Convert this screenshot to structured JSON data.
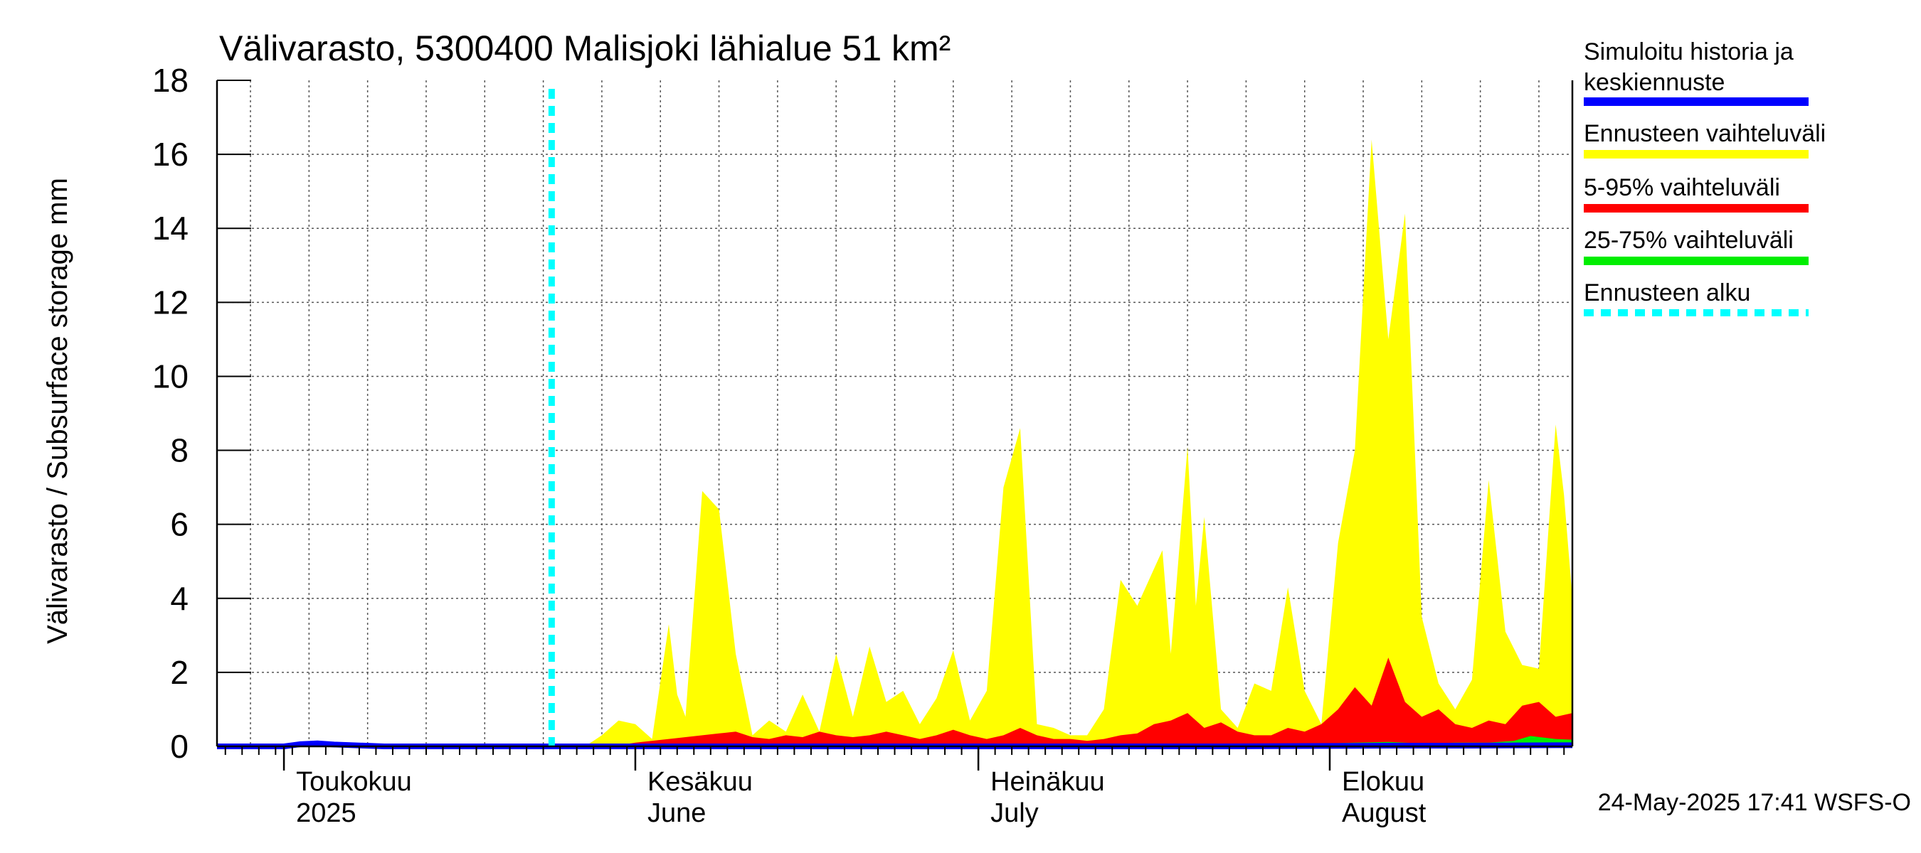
{
  "chart_data": {
    "type": "area",
    "title": "Välivarasto, 5300400 Malisjoki lähialue 51 km²",
    "ylabel": "Välivarasto / Subsurface storage  mm",
    "xlabel": "",
    "ylim": [
      0,
      18
    ],
    "yticks": [
      0,
      2,
      4,
      6,
      8,
      10,
      12,
      14,
      16,
      18
    ],
    "x_unit": "days since 2025-04-04",
    "xlim": [
      0,
      162
    ],
    "grid": true,
    "forecast_start_day": 40,
    "month_labels": [
      {
        "day": 8,
        "line1": "Toukokuu",
        "line2": "2025"
      },
      {
        "day": 50,
        "line1": "Kesäkuu",
        "line2": "June"
      },
      {
        "day": 91,
        "line1": "Heinäkuu",
        "line2": "July"
      },
      {
        "day": 133,
        "line1": "Elokuu",
        "line2": "August"
      }
    ],
    "series": [
      {
        "name": "Ennusteen vaihteluväli",
        "color": "#ffff00",
        "x": [
          40,
          44,
          46,
          48,
          50,
          52,
          54,
          55,
          56,
          58,
          60,
          62,
          64,
          66,
          68,
          70,
          72,
          74,
          76,
          78,
          80,
          82,
          84,
          86,
          88,
          90,
          92,
          94,
          96,
          98,
          100,
          102,
          104,
          106,
          108,
          110,
          112,
          113,
          114,
          116,
          117,
          118,
          120,
          122,
          124,
          126,
          128,
          130,
          132,
          134,
          136,
          138,
          140,
          142,
          144,
          146,
          148,
          150,
          152,
          154,
          156,
          158,
          160,
          161,
          162
        ],
        "values": [
          0,
          0,
          0.3,
          0.7,
          0.6,
          0.2,
          3.3,
          1.4,
          0.8,
          6.9,
          6.4,
          2.5,
          0.3,
          0.7,
          0.4,
          1.4,
          0.4,
          2.5,
          0.8,
          2.7,
          1.2,
          1.5,
          0.6,
          1.3,
          2.6,
          0.7,
          1.5,
          7.0,
          8.6,
          0.6,
          0.5,
          0.3,
          0.3,
          1.0,
          4.5,
          3.8,
          4.8,
          5.3,
          2.5,
          8.1,
          3.8,
          6.2,
          1.0,
          0.5,
          1.7,
          1.5,
          4.3,
          1.5,
          0.6,
          5.5,
          8.0,
          16.4,
          11.0,
          14.4,
          3.5,
          1.7,
          1.0,
          1.8,
          7.2,
          3.1,
          2.2,
          2.1,
          8.7,
          6.8,
          4.0
        ],
        "lower": 0
      },
      {
        "name": "5-95% vaihteluväli",
        "color": "#ff0000",
        "x": [
          40,
          47,
          50,
          54,
          56,
          58,
          60,
          62,
          64,
          66,
          68,
          70,
          72,
          74,
          76,
          78,
          80,
          82,
          84,
          86,
          88,
          90,
          92,
          94,
          96,
          98,
          100,
          102,
          104,
          106,
          108,
          110,
          112,
          114,
          116,
          118,
          120,
          122,
          124,
          126,
          128,
          130,
          132,
          134,
          136,
          138,
          140,
          142,
          144,
          146,
          148,
          150,
          152,
          154,
          156,
          158,
          160,
          162
        ],
        "values": [
          0,
          0,
          0.1,
          0.2,
          0.25,
          0.3,
          0.35,
          0.4,
          0.25,
          0.2,
          0.3,
          0.25,
          0.4,
          0.3,
          0.25,
          0.3,
          0.4,
          0.3,
          0.2,
          0.3,
          0.45,
          0.3,
          0.2,
          0.3,
          0.5,
          0.3,
          0.2,
          0.2,
          0.15,
          0.2,
          0.3,
          0.35,
          0.6,
          0.7,
          0.9,
          0.5,
          0.65,
          0.4,
          0.3,
          0.3,
          0.5,
          0.4,
          0.6,
          1.0,
          1.6,
          1.1,
          2.4,
          1.2,
          0.8,
          1.0,
          0.6,
          0.5,
          0.7,
          0.6,
          1.1,
          1.2,
          0.8,
          0.9
        ],
        "lower": 0
      },
      {
        "name": "25-75% vaihteluväli",
        "color": "#00ee00",
        "x": [
          40,
          60,
          70,
          72,
          80,
          90,
          100,
          110,
          120,
          130,
          136,
          140,
          144,
          148,
          152,
          155,
          157,
          160,
          162
        ],
        "values": [
          0,
          0.02,
          0.03,
          0.06,
          0.04,
          0.05,
          0.03,
          0.04,
          0.05,
          0.06,
          0.1,
          0.12,
          0.08,
          0.1,
          0.1,
          0.15,
          0.28,
          0.2,
          0.18
        ],
        "lower": 0
      },
      {
        "name": "Simuloitu historia ja keskiennuste",
        "color": "#0000ff",
        "x": [
          0,
          8,
          10,
          12,
          14,
          20,
          30,
          40,
          50,
          60,
          70,
          80,
          90,
          100,
          110,
          120,
          130,
          140,
          150,
          160,
          162
        ],
        "values": [
          0,
          0,
          0.06,
          0.08,
          0.05,
          0,
          0,
          0,
          0,
          0,
          0,
          0,
          0,
          0,
          0,
          0,
          0.01,
          0.02,
          0.02,
          0.03,
          0.03
        ]
      }
    ]
  },
  "legend": {
    "items": [
      {
        "label_line1": "Simuloitu historia ja",
        "label_line2": "keskiennuste",
        "color": "#0000ff",
        "style": "solid"
      },
      {
        "label_line1": "Ennusteen vaihteluväli",
        "label_line2": "",
        "color": "#ffff00",
        "style": "solid"
      },
      {
        "label_line1": "5-95% vaihteluväli",
        "label_line2": "",
        "color": "#ff0000",
        "style": "solid"
      },
      {
        "label_line1": "25-75% vaihteluväli",
        "label_line2": "",
        "color": "#00ee00",
        "style": "solid"
      },
      {
        "label_line1": "Ennusteen alku",
        "label_line2": "",
        "color": "#00ffff",
        "style": "dashed"
      }
    ]
  },
  "footer": {
    "text": "24-May-2025 17:41 WSFS-O"
  }
}
